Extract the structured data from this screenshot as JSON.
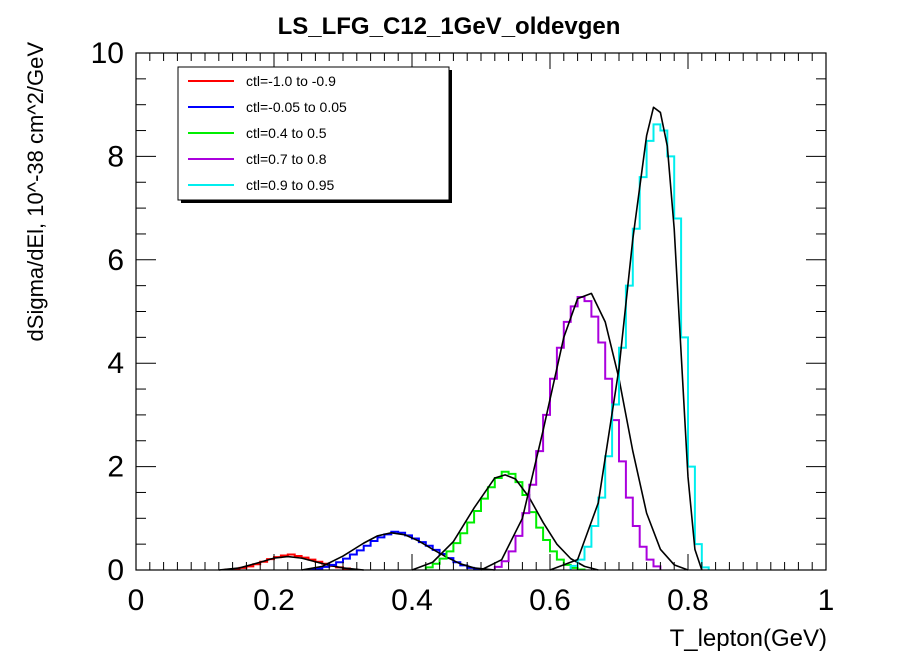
{
  "chart_data": {
    "type": "line",
    "title": "LS_LFG_C12_1GeV_oldevgen",
    "xlabel": "T_lepton(GeV)",
    "ylabel": "dSigma/dEl, 10^-38 cm^2/GeV",
    "xlim": [
      0,
      1
    ],
    "ylim": [
      0,
      10
    ],
    "x_ticks": [
      "0",
      "0.2",
      "0.4",
      "0.6",
      "0.8",
      "1"
    ],
    "y_ticks": [
      "0",
      "2",
      "4",
      "6",
      "8",
      "10"
    ],
    "grid": false,
    "legend_position": "top-left",
    "bin_width": 0.01,
    "series": [
      {
        "name": "ctl=-1.0 to -0.9",
        "color": "#ff0000",
        "histogram": [
          [
            0.13,
            0.01
          ],
          [
            0.14,
            0.02
          ],
          [
            0.15,
            0.04
          ],
          [
            0.16,
            0.07
          ],
          [
            0.17,
            0.11
          ],
          [
            0.18,
            0.16
          ],
          [
            0.19,
            0.21
          ],
          [
            0.2,
            0.25
          ],
          [
            0.21,
            0.28
          ],
          [
            0.22,
            0.3
          ],
          [
            0.23,
            0.27
          ],
          [
            0.24,
            0.24
          ],
          [
            0.25,
            0.2
          ],
          [
            0.26,
            0.16
          ],
          [
            0.27,
            0.12
          ],
          [
            0.28,
            0.08
          ],
          [
            0.29,
            0.05
          ],
          [
            0.3,
            0.03
          ],
          [
            0.31,
            0.01
          ]
        ],
        "fit": [
          [
            0.12,
            0.0
          ],
          [
            0.15,
            0.04
          ],
          [
            0.18,
            0.15
          ],
          [
            0.2,
            0.23
          ],
          [
            0.22,
            0.26
          ],
          [
            0.24,
            0.23
          ],
          [
            0.26,
            0.16
          ],
          [
            0.28,
            0.09
          ],
          [
            0.3,
            0.04
          ],
          [
            0.33,
            0.0
          ]
        ]
      },
      {
        "name": "ctl=-0.05 to 0.05",
        "color": "#0000ff",
        "histogram": [
          [
            0.25,
            0.01
          ],
          [
            0.26,
            0.03
          ],
          [
            0.27,
            0.06
          ],
          [
            0.28,
            0.1
          ],
          [
            0.29,
            0.15
          ],
          [
            0.3,
            0.22
          ],
          [
            0.31,
            0.3
          ],
          [
            0.32,
            0.38
          ],
          [
            0.33,
            0.47
          ],
          [
            0.34,
            0.56
          ],
          [
            0.35,
            0.63
          ],
          [
            0.36,
            0.69
          ],
          [
            0.37,
            0.74
          ],
          [
            0.38,
            0.72
          ],
          [
            0.39,
            0.67
          ],
          [
            0.4,
            0.61
          ],
          [
            0.41,
            0.54
          ],
          [
            0.42,
            0.47
          ],
          [
            0.43,
            0.39
          ],
          [
            0.44,
            0.31
          ],
          [
            0.45,
            0.23
          ],
          [
            0.46,
            0.15
          ],
          [
            0.47,
            0.09
          ],
          [
            0.48,
            0.04
          ],
          [
            0.49,
            0.01
          ]
        ],
        "fit": [
          [
            0.24,
            0.0
          ],
          [
            0.27,
            0.07
          ],
          [
            0.3,
            0.27
          ],
          [
            0.33,
            0.52
          ],
          [
            0.35,
            0.66
          ],
          [
            0.37,
            0.72
          ],
          [
            0.39,
            0.68
          ],
          [
            0.41,
            0.56
          ],
          [
            0.43,
            0.4
          ],
          [
            0.45,
            0.25
          ],
          [
            0.47,
            0.12
          ],
          [
            0.49,
            0.04
          ],
          [
            0.52,
            0.0
          ]
        ]
      },
      {
        "name": "ctl=0.4 to 0.5",
        "color": "#00ee00",
        "histogram": [
          [
            0.42,
            0.05
          ],
          [
            0.43,
            0.12
          ],
          [
            0.44,
            0.22
          ],
          [
            0.45,
            0.36
          ],
          [
            0.46,
            0.52
          ],
          [
            0.47,
            0.71
          ],
          [
            0.48,
            0.92
          ],
          [
            0.49,
            1.14
          ],
          [
            0.5,
            1.38
          ],
          [
            0.51,
            1.6
          ],
          [
            0.52,
            1.78
          ],
          [
            0.53,
            1.9
          ],
          [
            0.54,
            1.86
          ],
          [
            0.55,
            1.7
          ],
          [
            0.56,
            1.45
          ],
          [
            0.57,
            1.12
          ],
          [
            0.58,
            0.82
          ],
          [
            0.59,
            0.58
          ],
          [
            0.6,
            0.36
          ],
          [
            0.61,
            0.2
          ],
          [
            0.62,
            0.1
          ],
          [
            0.63,
            0.04
          ],
          [
            0.64,
            0.01
          ]
        ],
        "fit": [
          [
            0.4,
            0.0
          ],
          [
            0.43,
            0.15
          ],
          [
            0.46,
            0.55
          ],
          [
            0.49,
            1.2
          ],
          [
            0.52,
            1.78
          ],
          [
            0.535,
            1.84
          ],
          [
            0.55,
            1.76
          ],
          [
            0.57,
            1.4
          ],
          [
            0.59,
            0.92
          ],
          [
            0.61,
            0.5
          ],
          [
            0.63,
            0.22
          ],
          [
            0.65,
            0.07
          ],
          [
            0.67,
            0.0
          ]
        ]
      },
      {
        "name": "ctl=0.7 to 0.8",
        "color": "#aa00dd",
        "histogram": [
          [
            0.52,
            0.06
          ],
          [
            0.53,
            0.17
          ],
          [
            0.54,
            0.36
          ],
          [
            0.55,
            0.66
          ],
          [
            0.56,
            1.1
          ],
          [
            0.57,
            1.65
          ],
          [
            0.58,
            2.3
          ],
          [
            0.59,
            3.0
          ],
          [
            0.6,
            3.7
          ],
          [
            0.61,
            4.3
          ],
          [
            0.62,
            4.8
          ],
          [
            0.63,
            5.1
          ],
          [
            0.64,
            5.28
          ],
          [
            0.65,
            5.2
          ],
          [
            0.66,
            4.9
          ],
          [
            0.67,
            4.4
          ],
          [
            0.68,
            3.7
          ],
          [
            0.69,
            2.9
          ],
          [
            0.7,
            2.1
          ],
          [
            0.71,
            1.4
          ],
          [
            0.72,
            0.85
          ],
          [
            0.73,
            0.45
          ],
          [
            0.74,
            0.2
          ],
          [
            0.75,
            0.07
          ]
        ],
        "fit": [
          [
            0.5,
            0.0
          ],
          [
            0.53,
            0.2
          ],
          [
            0.56,
            1.0
          ],
          [
            0.59,
            2.7
          ],
          [
            0.62,
            4.5
          ],
          [
            0.64,
            5.25
          ],
          [
            0.66,
            5.35
          ],
          [
            0.68,
            4.8
          ],
          [
            0.7,
            3.7
          ],
          [
            0.72,
            2.3
          ],
          [
            0.74,
            1.1
          ],
          [
            0.76,
            0.4
          ],
          [
            0.78,
            0.1
          ],
          [
            0.8,
            0.0
          ]
        ]
      },
      {
        "name": "ctl=0.9 to 0.95",
        "color": "#00eeee",
        "histogram": [
          [
            0.63,
            0.08
          ],
          [
            0.64,
            0.2
          ],
          [
            0.65,
            0.45
          ],
          [
            0.66,
            0.85
          ],
          [
            0.67,
            1.4
          ],
          [
            0.68,
            2.2
          ],
          [
            0.69,
            3.2
          ],
          [
            0.7,
            4.3
          ],
          [
            0.71,
            5.5
          ],
          [
            0.72,
            6.6
          ],
          [
            0.73,
            7.6
          ],
          [
            0.74,
            8.3
          ],
          [
            0.75,
            8.62
          ],
          [
            0.76,
            8.5
          ],
          [
            0.77,
            8.0
          ],
          [
            0.78,
            6.8
          ],
          [
            0.79,
            4.5
          ],
          [
            0.8,
            2.0
          ],
          [
            0.81,
            0.5
          ],
          [
            0.82,
            0.05
          ]
        ],
        "fit": [
          [
            0.6,
            0.0
          ],
          [
            0.64,
            0.2
          ],
          [
            0.67,
            1.3
          ],
          [
            0.7,
            3.9
          ],
          [
            0.72,
            6.4
          ],
          [
            0.74,
            8.4
          ],
          [
            0.75,
            8.95
          ],
          [
            0.76,
            8.85
          ],
          [
            0.77,
            8.2
          ],
          [
            0.78,
            6.6
          ],
          [
            0.79,
            4.2
          ],
          [
            0.8,
            1.8
          ],
          [
            0.81,
            0.4
          ],
          [
            0.82,
            0.0
          ]
        ]
      }
    ],
    "fit_color": "#000000"
  }
}
